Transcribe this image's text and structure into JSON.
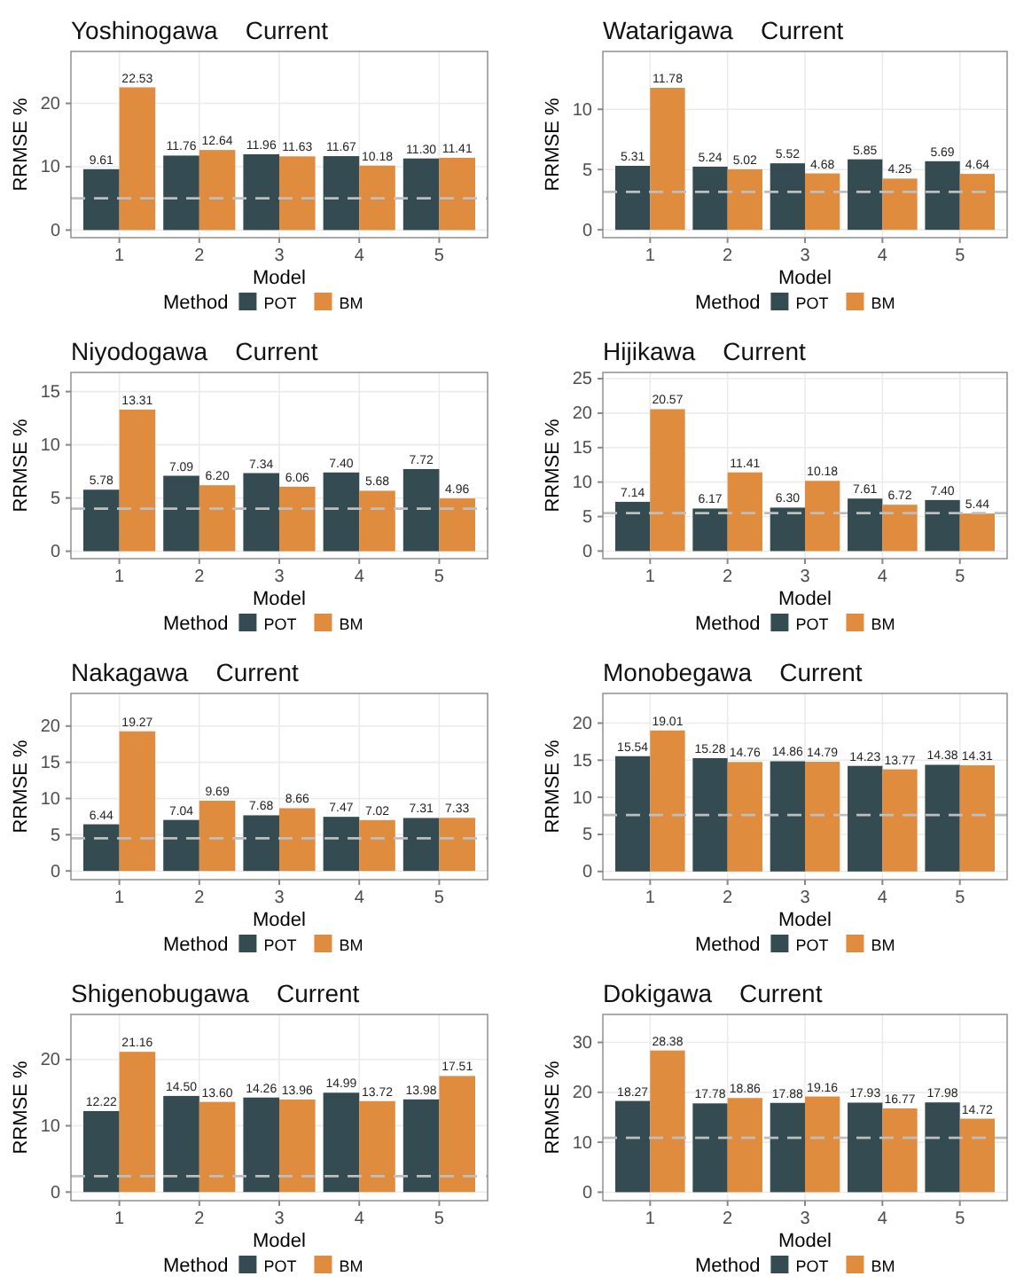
{
  "chart_data": [
    {
      "type": "bar",
      "title": "Yoshinogawa    Current",
      "xlabel": "Model",
      "ylabel": "RRMSE %",
      "legend_title": "Method",
      "categories": [
        "1",
        "2",
        "3",
        "4",
        "5"
      ],
      "ylim": [
        -1.2,
        28.2
      ],
      "yticks": [
        0,
        10,
        20
      ],
      "grid": true,
      "legend": "bottom",
      "ref_lines": [
        {
          "axis": "y",
          "value": 5.0,
          "color": "#bebebe",
          "line_style": "dashed"
        }
      ],
      "series": [
        {
          "name": "POT",
          "color": "#354b52",
          "values": [
            9.61,
            11.76,
            11.96,
            11.67,
            11.3
          ],
          "value_labels": [
            "9.61",
            "11.76",
            "11.96",
            "11.67",
            "11.30"
          ]
        },
        {
          "name": "BM",
          "color": "#df8c3e",
          "values": [
            22.53,
            12.64,
            11.63,
            10.18,
            11.41
          ],
          "value_labels": [
            "22.53",
            "12.64",
            "11.63",
            "10.18",
            "11.41"
          ]
        }
      ]
    },
    {
      "type": "bar",
      "title": "Watarigawa    Current",
      "xlabel": "Model",
      "ylabel": "RRMSE %",
      "legend_title": "Method",
      "categories": [
        "1",
        "2",
        "3",
        "4",
        "5"
      ],
      "ylim": [
        -0.65,
        14.8
      ],
      "yticks": [
        0,
        5,
        10
      ],
      "grid": true,
      "legend": "bottom",
      "ref_lines": [
        {
          "axis": "y",
          "value": 3.15,
          "color": "#bebebe",
          "line_style": "dashed"
        }
      ],
      "series": [
        {
          "name": "POT",
          "color": "#354b52",
          "values": [
            5.31,
            5.24,
            5.52,
            5.85,
            5.69
          ],
          "value_labels": [
            "5.31",
            "5.24",
            "5.52",
            "5.85",
            "5.69"
          ]
        },
        {
          "name": "BM",
          "color": "#df8c3e",
          "values": [
            11.78,
            5.02,
            4.68,
            4.25,
            4.64
          ],
          "value_labels": [
            "11.78",
            "5.02",
            "4.68",
            "4.25",
            "4.64"
          ]
        }
      ]
    },
    {
      "type": "bar",
      "title": "Niyodogawa    Current",
      "xlabel": "Model",
      "ylabel": "RRMSE %",
      "legend_title": "Method",
      "categories": [
        "1",
        "2",
        "3",
        "4",
        "5"
      ],
      "ylim": [
        -0.7,
        16.8
      ],
      "yticks": [
        0,
        5,
        10,
        15
      ],
      "grid": true,
      "legend": "bottom",
      "ref_lines": [
        {
          "axis": "y",
          "value": 4.0,
          "color": "#bebebe",
          "line_style": "dashed"
        }
      ],
      "series": [
        {
          "name": "POT",
          "color": "#354b52",
          "values": [
            5.78,
            7.09,
            7.34,
            7.4,
            7.72
          ],
          "value_labels": [
            "5.78",
            "7.09",
            "7.34",
            "7.40",
            "7.72"
          ]
        },
        {
          "name": "BM",
          "color": "#df8c3e",
          "values": [
            13.31,
            6.2,
            6.06,
            5.68,
            4.96
          ],
          "value_labels": [
            "13.31",
            "6.20",
            "6.06",
            "5.68",
            "4.96"
          ]
        }
      ]
    },
    {
      "type": "bar",
      "title": "Hijikawa    Current",
      "xlabel": "Model",
      "ylabel": "RRMSE %",
      "legend_title": "Method",
      "categories": [
        "1",
        "2",
        "3",
        "4",
        "5"
      ],
      "ylim": [
        -1.1,
        25.9
      ],
      "yticks": [
        0,
        5,
        10,
        15,
        20,
        25
      ],
      "grid": true,
      "legend": "bottom",
      "ref_lines": [
        {
          "axis": "y",
          "value": 5.5,
          "color": "#bebebe",
          "line_style": "dashed"
        }
      ],
      "series": [
        {
          "name": "POT",
          "color": "#354b52",
          "values": [
            7.14,
            6.17,
            6.3,
            7.61,
            7.4
          ],
          "value_labels": [
            "7.14",
            "6.17",
            "6.30",
            "7.61",
            "7.40"
          ]
        },
        {
          "name": "BM",
          "color": "#df8c3e",
          "values": [
            20.57,
            11.41,
            10.18,
            6.72,
            5.44
          ],
          "value_labels": [
            "20.57",
            "11.41",
            "10.18",
            "6.72",
            "5.44"
          ]
        }
      ]
    },
    {
      "type": "bar",
      "title": "Nakagawa    Current",
      "xlabel": "Model",
      "ylabel": "RRMSE %",
      "legend_title": "Method",
      "categories": [
        "1",
        "2",
        "3",
        "4",
        "5"
      ],
      "ylim": [
        -1.2,
        24.5
      ],
      "yticks": [
        0,
        5,
        10,
        15,
        20
      ],
      "grid": true,
      "legend": "bottom",
      "ref_lines": [
        {
          "axis": "y",
          "value": 4.5,
          "color": "#bebebe",
          "line_style": "dashed"
        }
      ],
      "series": [
        {
          "name": "POT",
          "color": "#354b52",
          "values": [
            6.44,
            7.04,
            7.68,
            7.47,
            7.31
          ],
          "value_labels": [
            "6.44",
            "7.04",
            "7.68",
            "7.47",
            "7.31"
          ]
        },
        {
          "name": "BM",
          "color": "#df8c3e",
          "values": [
            19.27,
            9.69,
            8.66,
            7.02,
            7.33
          ],
          "value_labels": [
            "19.27",
            "9.69",
            "8.66",
            "7.02",
            "7.33"
          ]
        }
      ]
    },
    {
      "type": "bar",
      "title": "Monobegawa    Current",
      "xlabel": "Model",
      "ylabel": "RRMSE %",
      "legend_title": "Method",
      "categories": [
        "1",
        "2",
        "3",
        "4",
        "5"
      ],
      "ylim": [
        -1.1,
        24
      ],
      "yticks": [
        0,
        5,
        10,
        15,
        20
      ],
      "grid": true,
      "legend": "bottom",
      "ref_lines": [
        {
          "axis": "y",
          "value": 7.6,
          "color": "#bebebe",
          "line_style": "dashed"
        }
      ],
      "series": [
        {
          "name": "POT",
          "color": "#354b52",
          "values": [
            15.54,
            15.28,
            14.86,
            14.23,
            14.38
          ],
          "value_labels": [
            "15.54",
            "15.28",
            "14.86",
            "14.23",
            "14.38"
          ]
        },
        {
          "name": "BM",
          "color": "#df8c3e",
          "values": [
            19.01,
            14.76,
            14.79,
            13.77,
            14.31
          ],
          "value_labels": [
            "19.01",
            "14.76",
            "14.79",
            "13.77",
            "14.31"
          ]
        }
      ]
    },
    {
      "type": "bar",
      "title": "Shigenobugawa    Current",
      "xlabel": "Model",
      "ylabel": "RRMSE %",
      "legend_title": "Method",
      "categories": [
        "1",
        "2",
        "3",
        "4",
        "5"
      ],
      "ylim": [
        -1.3,
        26.8
      ],
      "yticks": [
        0,
        10,
        20
      ],
      "grid": true,
      "legend": "bottom",
      "ref_lines": [
        {
          "axis": "y",
          "value": 2.4,
          "color": "#bebebe",
          "line_style": "dashed"
        }
      ],
      "series": [
        {
          "name": "POT",
          "color": "#354b52",
          "values": [
            12.22,
            14.5,
            14.26,
            14.99,
            13.98
          ],
          "value_labels": [
            "12.22",
            "14.50",
            "14.26",
            "14.99",
            "13.98"
          ]
        },
        {
          "name": "BM",
          "color": "#df8c3e",
          "values": [
            21.16,
            13.6,
            13.96,
            13.72,
            17.51
          ],
          "value_labels": [
            "21.16",
            "13.60",
            "13.96",
            "13.72",
            "17.51"
          ]
        }
      ]
    },
    {
      "type": "bar",
      "title": "Dokigawa    Current",
      "xlabel": "Model",
      "ylabel": "RRMSE %",
      "legend_title": "Method",
      "categories": [
        "1",
        "2",
        "3",
        "4",
        "5"
      ],
      "ylim": [
        -1.7,
        35.6
      ],
      "yticks": [
        0,
        10,
        20,
        30
      ],
      "grid": true,
      "legend": "bottom",
      "ref_lines": [
        {
          "axis": "y",
          "value": 10.9,
          "color": "#bebebe",
          "line_style": "dashed"
        }
      ],
      "series": [
        {
          "name": "POT",
          "color": "#354b52",
          "values": [
            18.27,
            17.78,
            17.88,
            17.93,
            17.98
          ],
          "value_labels": [
            "18.27",
            "17.78",
            "17.88",
            "17.93",
            "17.98"
          ]
        },
        {
          "name": "BM",
          "color": "#df8c3e",
          "values": [
            28.38,
            18.86,
            19.16,
            16.77,
            14.72
          ],
          "value_labels": [
            "28.38",
            "18.86",
            "19.16",
            "16.77",
            "14.72"
          ]
        }
      ]
    }
  ]
}
